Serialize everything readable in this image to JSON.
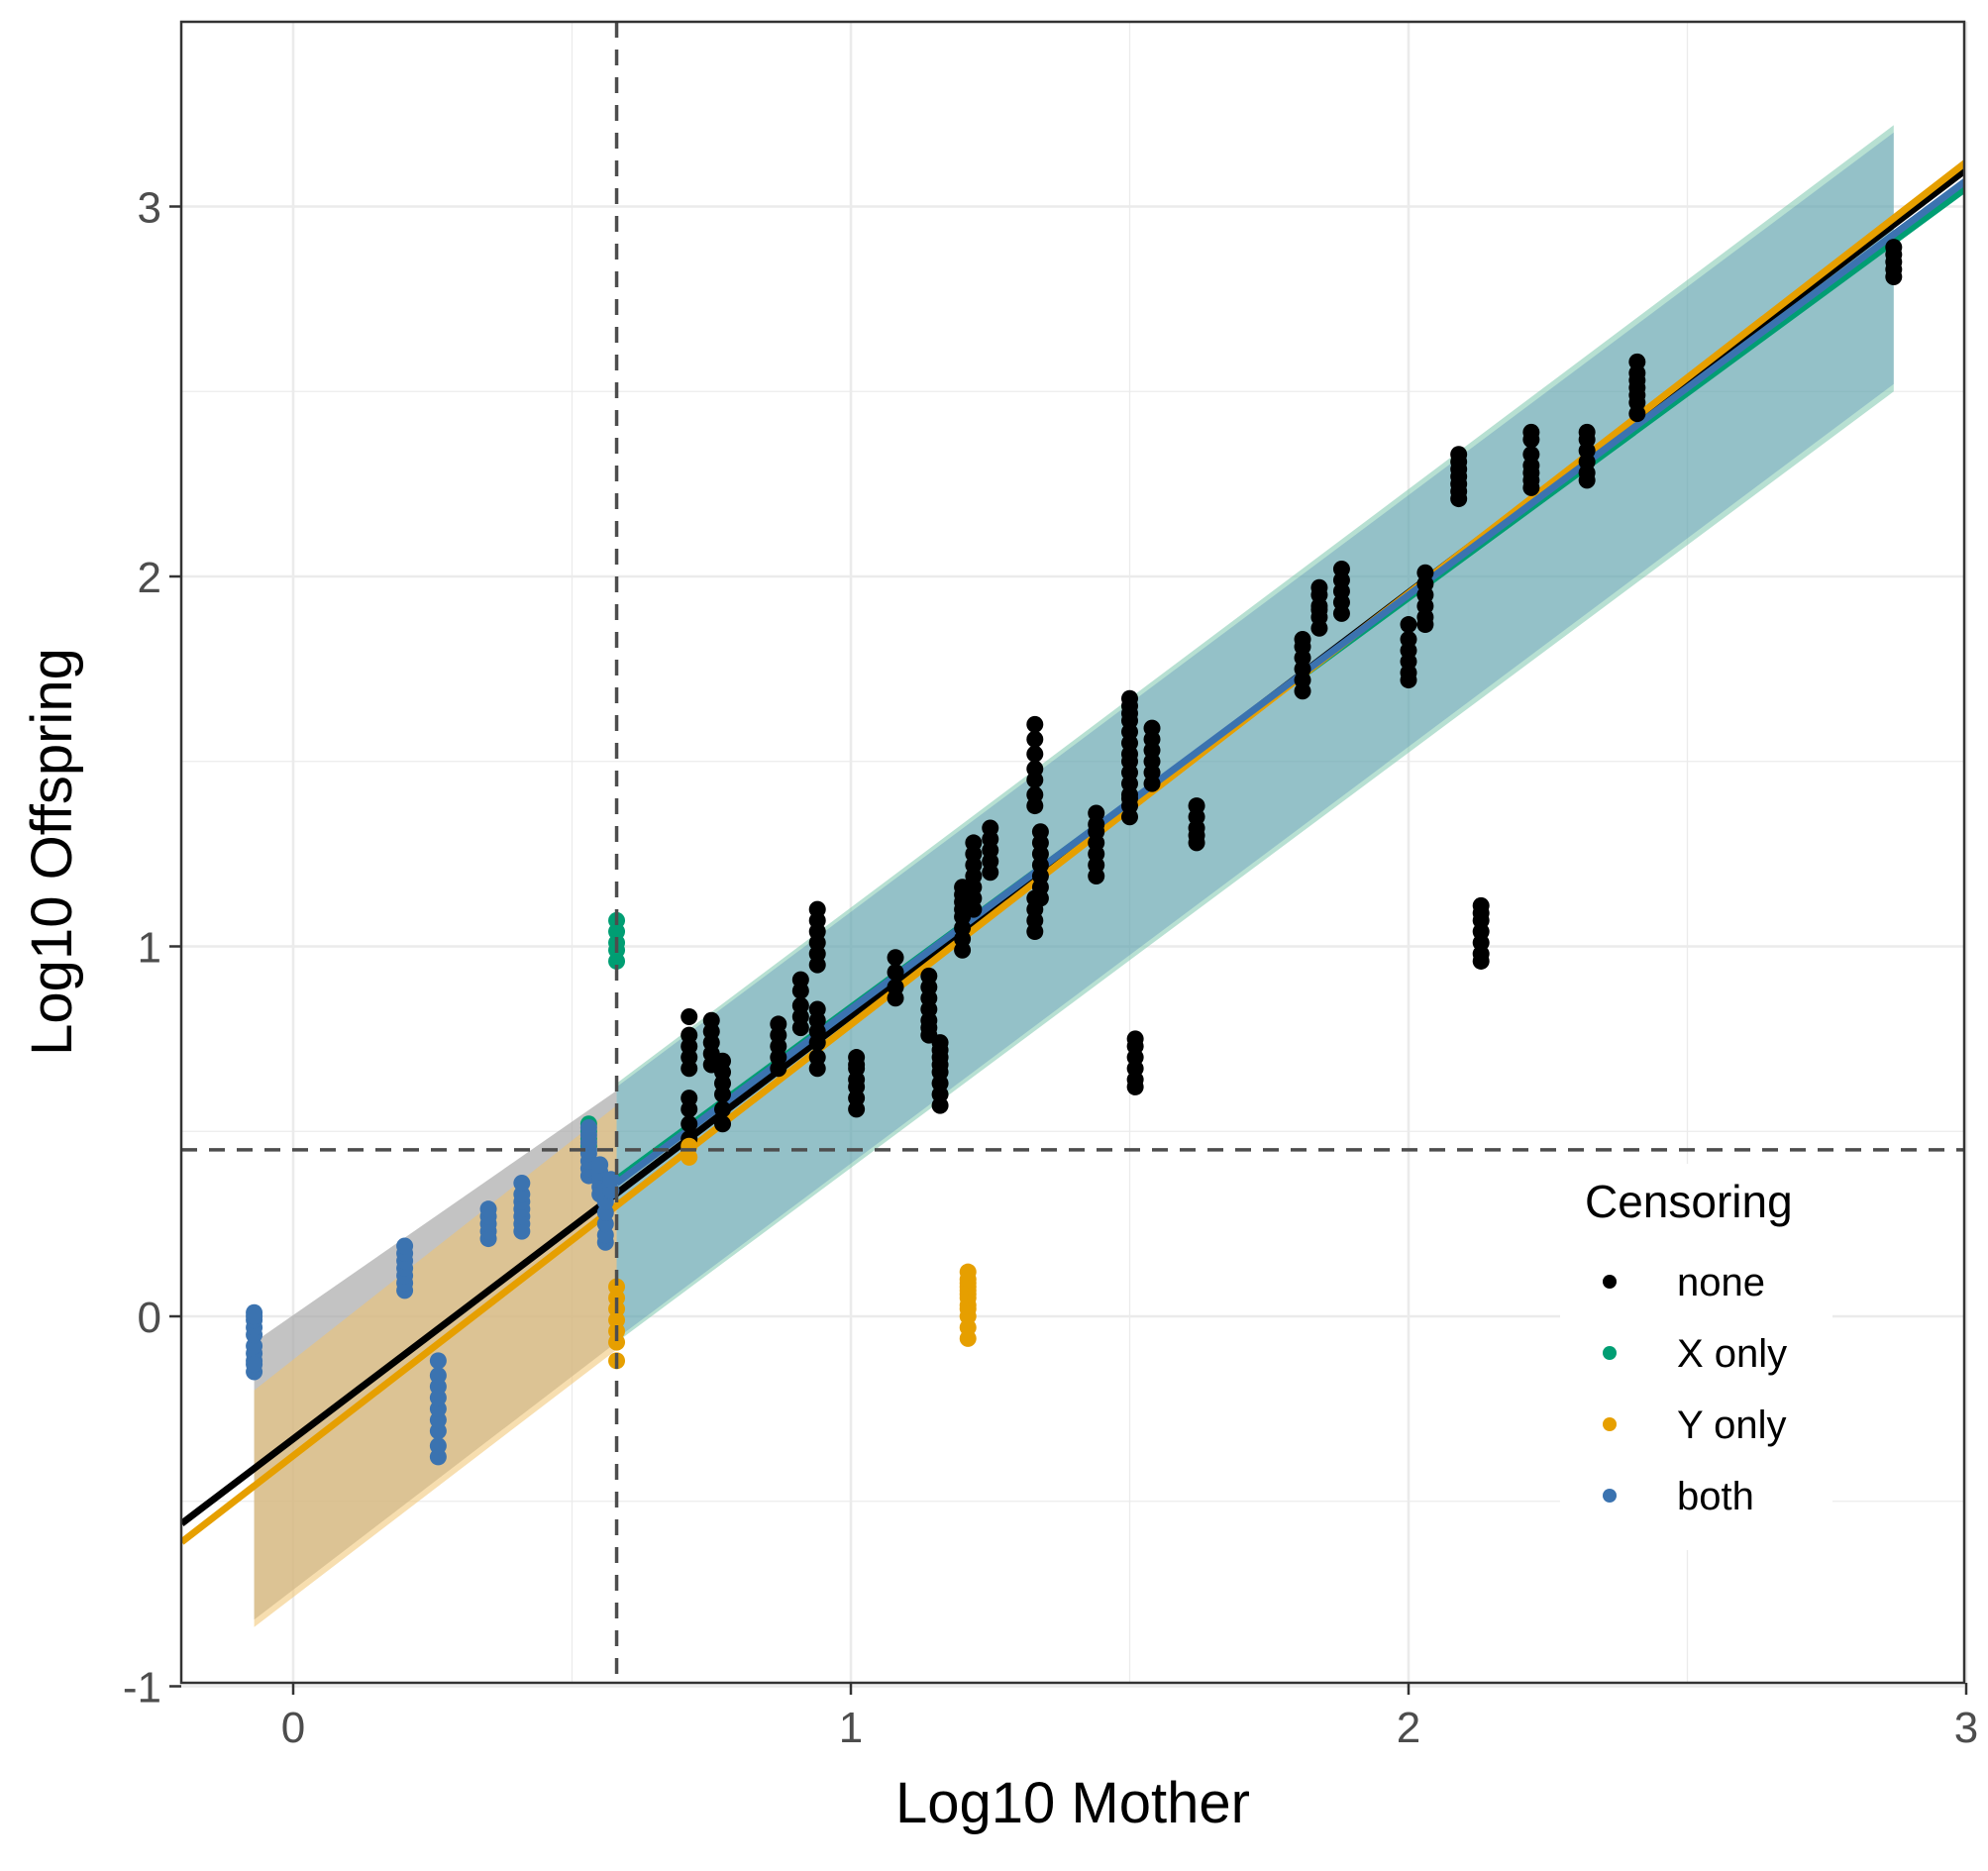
{
  "chart_data": {
    "type": "scatter",
    "xlabel": "Log10 Mother",
    "ylabel": "Log10 Offspring",
    "xlim": [
      -0.2,
      3.0
    ],
    "ylim": [
      -1.0,
      3.5
    ],
    "xticks": [
      0,
      1,
      2,
      3
    ],
    "yticks": [
      -1,
      0,
      1,
      2,
      3
    ],
    "grid": true,
    "censor_x": 0.58,
    "censor_y": 0.45,
    "legend": {
      "title": "Censoring",
      "position": "right",
      "entries": [
        {
          "label": "none",
          "color": "#000000"
        },
        {
          "label": "X only",
          "color": "#009E73"
        },
        {
          "label": "Y only",
          "color": "#E69F00"
        },
        {
          "label": "both",
          "color": "#3B73B0"
        }
      ]
    },
    "colors": {
      "none": "#000000",
      "x_only": "#009E73",
      "y_only": "#E69F00",
      "both": "#3B73B0",
      "band_fill": "#7A9E8D",
      "reference_line": "#4d4d4d"
    },
    "fit_lines": [
      {
        "series": "none",
        "x": [
          -0.2,
          3.0
        ],
        "y": [
          -0.56,
          3.1
        ],
        "band": {
          "x": [
            -0.07,
            0.58
          ],
          "upper": [
            -0.07,
            0.61
          ],
          "lower": [
            -0.82,
            -0.07
          ]
        }
      },
      {
        "series": "X only",
        "x": [
          0.58,
          3.0
        ],
        "y": [
          0.37,
          3.05
        ],
        "band": {
          "x": [
            0.58,
            2.87
          ],
          "upper": [
            0.63,
            3.22
          ],
          "lower": [
            -0.07,
            2.5
          ]
        }
      },
      {
        "series": "Y only",
        "x": [
          -0.2,
          3.0
        ],
        "y": [
          -0.61,
          3.12
        ],
        "band": {
          "x": [
            -0.07,
            0.58
          ],
          "upper": [
            -0.2,
            0.57
          ],
          "lower": [
            -0.84,
            -0.09
          ]
        }
      },
      {
        "series": "both",
        "x": [
          0.58,
          3.0
        ],
        "y": [
          0.36,
          3.07
        ],
        "band": {
          "x": [
            0.58,
            2.87
          ],
          "upper": [
            0.62,
            3.2
          ],
          "lower": [
            -0.06,
            2.52
          ]
        }
      }
    ],
    "series": [
      {
        "name": "none",
        "x": [
          0.71,
          0.71,
          0.71,
          0.71,
          0.71,
          0.71,
          0.71,
          0.71,
          0.71,
          0.75,
          0.75,
          0.75,
          0.75,
          0.75,
          0.77,
          0.77,
          0.77,
          0.77,
          0.77,
          0.77,
          0.87,
          0.87,
          0.87,
          0.87,
          0.87,
          0.91,
          0.91,
          0.91,
          0.91,
          0.91,
          0.94,
          0.94,
          0.94,
          0.94,
          0.94,
          0.94,
          0.94,
          0.94,
          0.94,
          0.94,
          0.94,
          0.94,
          1.01,
          1.01,
          1.01,
          1.01,
          1.01,
          1.01,
          1.01,
          1.08,
          1.08,
          1.08,
          1.08,
          1.14,
          1.14,
          1.14,
          1.14,
          1.14,
          1.14,
          1.14,
          1.16,
          1.16,
          1.16,
          1.16,
          1.16,
          1.16,
          1.16,
          1.16,
          1.2,
          1.2,
          1.2,
          1.2,
          1.2,
          1.2,
          1.2,
          1.2,
          1.22,
          1.22,
          1.22,
          1.22,
          1.22,
          1.22,
          1.22,
          1.25,
          1.25,
          1.25,
          1.25,
          1.25,
          1.33,
          1.33,
          1.33,
          1.33,
          1.33,
          1.33,
          1.33,
          1.33,
          1.33,
          1.33,
          1.33,
          1.34,
          1.34,
          1.34,
          1.34,
          1.34,
          1.34,
          1.34,
          1.44,
          1.44,
          1.44,
          1.44,
          1.44,
          1.44,
          1.44,
          1.5,
          1.5,
          1.5,
          1.5,
          1.5,
          1.5,
          1.5,
          1.5,
          1.5,
          1.5,
          1.5,
          1.5,
          1.5,
          1.5,
          1.51,
          1.51,
          1.51,
          1.51,
          1.51,
          1.51,
          1.54,
          1.54,
          1.54,
          1.54,
          1.54,
          1.54,
          1.62,
          1.62,
          1.62,
          1.62,
          1.62,
          1.81,
          1.81,
          1.81,
          1.81,
          1.81,
          1.81,
          1.84,
          1.84,
          1.84,
          1.84,
          1.84,
          1.84,
          1.88,
          1.88,
          1.88,
          1.88,
          1.88,
          2.0,
          2.0,
          2.0,
          2.0,
          2.0,
          2.0,
          2.03,
          2.03,
          2.03,
          2.03,
          2.03,
          2.03,
          2.09,
          2.09,
          2.09,
          2.09,
          2.09,
          2.09,
          2.09,
          2.13,
          2.13,
          2.13,
          2.13,
          2.13,
          2.13,
          2.13,
          2.22,
          2.22,
          2.22,
          2.22,
          2.22,
          2.22,
          2.22,
          2.32,
          2.32,
          2.32,
          2.32,
          2.32,
          2.32,
          2.41,
          2.41,
          2.41,
          2.41,
          2.41,
          2.41,
          2.41,
          2.87,
          2.87,
          2.87,
          2.87,
          2.87
        ],
        "y": [
          0.48,
          0.52,
          0.56,
          0.59,
          0.67,
          0.7,
          0.73,
          0.76,
          0.81,
          0.68,
          0.71,
          0.74,
          0.77,
          0.8,
          0.52,
          0.56,
          0.6,
          0.63,
          0.66,
          0.69,
          0.67,
          0.7,
          0.73,
          0.76,
          0.79,
          0.78,
          0.81,
          0.84,
          0.88,
          0.91,
          0.67,
          0.7,
          0.74,
          0.77,
          0.8,
          0.83,
          0.95,
          0.98,
          1.01,
          1.04,
          1.07,
          1.1,
          0.56,
          0.59,
          0.62,
          0.64,
          0.67,
          0.7,
          0.68,
          0.86,
          0.89,
          0.93,
          0.97,
          0.76,
          0.78,
          0.8,
          0.83,
          0.86,
          0.89,
          0.92,
          0.57,
          0.6,
          0.63,
          0.66,
          0.68,
          0.7,
          0.72,
          0.74,
          0.99,
          1.02,
          1.05,
          1.08,
          1.1,
          1.12,
          1.14,
          1.16,
          1.1,
          1.13,
          1.16,
          1.19,
          1.22,
          1.25,
          1.28,
          1.2,
          1.23,
          1.26,
          1.29,
          1.32,
          1.04,
          1.07,
          1.1,
          1.13,
          1.38,
          1.41,
          1.45,
          1.48,
          1.52,
          1.56,
          1.6,
          1.13,
          1.16,
          1.19,
          1.22,
          1.25,
          1.28,
          1.31,
          1.19,
          1.22,
          1.25,
          1.28,
          1.31,
          1.33,
          1.36,
          1.35,
          1.38,
          1.41,
          1.44,
          1.47,
          1.5,
          1.52,
          1.55,
          1.58,
          1.61,
          1.63,
          1.65,
          1.67,
          1.4,
          0.62,
          0.64,
          0.67,
          0.7,
          0.73,
          0.75,
          1.44,
          1.47,
          1.5,
          1.53,
          1.56,
          1.59,
          1.28,
          1.3,
          1.32,
          1.35,
          1.38,
          1.69,
          1.72,
          1.75,
          1.78,
          1.81,
          1.83,
          1.86,
          1.89,
          1.92,
          1.95,
          1.97,
          1.91,
          1.9,
          1.93,
          1.96,
          1.99,
          2.02,
          1.72,
          1.74,
          1.77,
          1.8,
          1.83,
          1.87,
          1.87,
          1.89,
          1.92,
          1.95,
          1.98,
          2.01,
          2.21,
          2.23,
          2.25,
          2.27,
          2.29,
          2.31,
          2.33,
          0.96,
          0.98,
          1.01,
          1.04,
          1.07,
          1.09,
          1.11,
          2.24,
          2.26,
          2.28,
          2.3,
          2.33,
          2.37,
          2.39,
          2.26,
          2.28,
          2.31,
          2.34,
          2.37,
          2.39,
          2.44,
          2.47,
          2.49,
          2.51,
          2.53,
          2.55,
          2.58,
          2.81,
          2.83,
          2.85,
          2.87,
          2.89
        ]
      },
      {
        "name": "X only",
        "x": [
          0.53,
          0.53,
          0.53,
          0.53,
          0.58,
          0.58,
          0.58,
          0.58,
          0.58
        ],
        "y": [
          0.46,
          0.48,
          0.5,
          0.52,
          0.96,
          0.99,
          1.01,
          1.04,
          1.07
        ]
      },
      {
        "name": "Y only",
        "x": [
          0.58,
          0.58,
          0.58,
          0.58,
          0.58,
          0.58,
          0.58,
          0.71,
          0.71,
          1.21,
          1.21,
          1.21,
          1.21,
          1.21,
          1.21,
          1.21,
          1.21,
          1.21,
          1.21,
          1.21,
          1.21
        ],
        "y": [
          -0.12,
          -0.07,
          -0.04,
          -0.01,
          0.02,
          0.05,
          0.08,
          0.43,
          0.46,
          -0.06,
          -0.03,
          0.0,
          0.02,
          0.03,
          0.05,
          0.06,
          0.07,
          0.08,
          0.09,
          0.1,
          0.12
        ]
      },
      {
        "name": "both",
        "x": [
          -0.07,
          -0.07,
          -0.07,
          -0.07,
          -0.07,
          -0.07,
          -0.07,
          -0.07,
          -0.07,
          -0.07,
          0.2,
          0.2,
          0.2,
          0.2,
          0.2,
          0.2,
          0.2,
          0.26,
          0.26,
          0.26,
          0.26,
          0.26,
          0.26,
          0.26,
          0.26,
          0.26,
          0.35,
          0.35,
          0.35,
          0.35,
          0.35,
          0.41,
          0.41,
          0.41,
          0.41,
          0.41,
          0.41,
          0.41,
          0.53,
          0.53,
          0.53,
          0.53,
          0.53,
          0.53,
          0.53,
          0.53,
          0.55,
          0.55,
          0.55,
          0.55,
          0.55,
          0.56,
          0.56,
          0.56,
          0.56,
          0.56,
          0.56,
          0.57,
          0.57
        ],
        "y": [
          -0.15,
          -0.12,
          -0.1,
          -0.08,
          -0.05,
          -0.03,
          -0.01,
          0.01,
          0.0,
          -0.13,
          0.07,
          0.09,
          0.11,
          0.13,
          0.15,
          0.17,
          0.19,
          -0.38,
          -0.35,
          -0.31,
          -0.28,
          -0.25,
          -0.22,
          -0.19,
          -0.16,
          -0.12,
          0.21,
          0.23,
          0.25,
          0.27,
          0.29,
          0.23,
          0.25,
          0.27,
          0.29,
          0.31,
          0.33,
          0.36,
          0.38,
          0.4,
          0.42,
          0.44,
          0.45,
          0.47,
          0.49,
          0.51,
          0.33,
          0.35,
          0.37,
          0.39,
          0.41,
          0.2,
          0.22,
          0.25,
          0.28,
          0.31,
          0.34,
          0.34,
          0.37
        ]
      }
    ]
  }
}
